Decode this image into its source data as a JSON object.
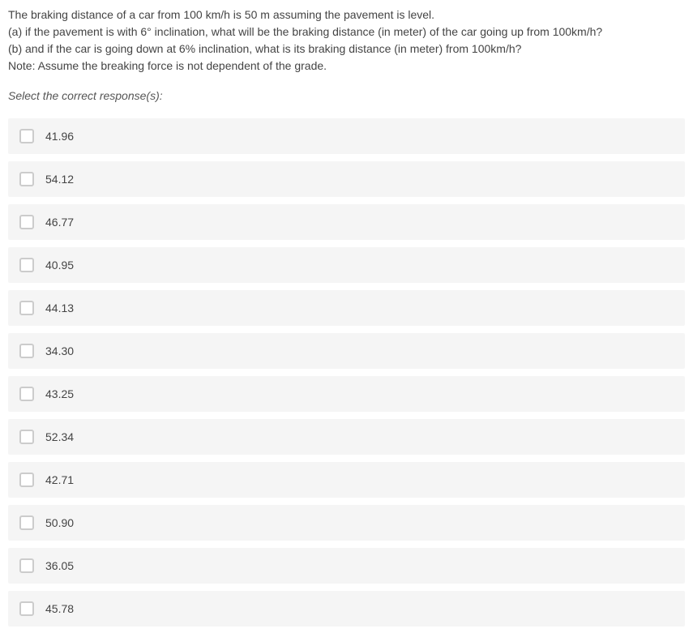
{
  "question": {
    "line1": "The braking distance of a car from 100 km/h is 50 m assuming the pavement is level.",
    "line2": "(a) if the pavement is with 6° inclination, what will be the braking distance (in meter) of the car going up from 100km/h?",
    "line3": "(b) and if the car is going down at 6% inclination, what is its braking distance (in meter) from 100km/h?",
    "line4": "Note: Assume the breaking force is not dependent of the grade."
  },
  "prompt": "Select the correct response(s):",
  "options": [
    {
      "label": "41.96"
    },
    {
      "label": "54.12"
    },
    {
      "label": "46.77"
    },
    {
      "label": "40.95"
    },
    {
      "label": "44.13"
    },
    {
      "label": "34.30"
    },
    {
      "label": "43.25"
    },
    {
      "label": "52.34"
    },
    {
      "label": "42.71"
    },
    {
      "label": "50.90"
    },
    {
      "label": "36.05"
    },
    {
      "label": "45.78"
    }
  ],
  "colors": {
    "text": "#444444",
    "option_bg": "#f5f5f5",
    "checkbox_border": "#cccccc",
    "background": "#ffffff"
  }
}
